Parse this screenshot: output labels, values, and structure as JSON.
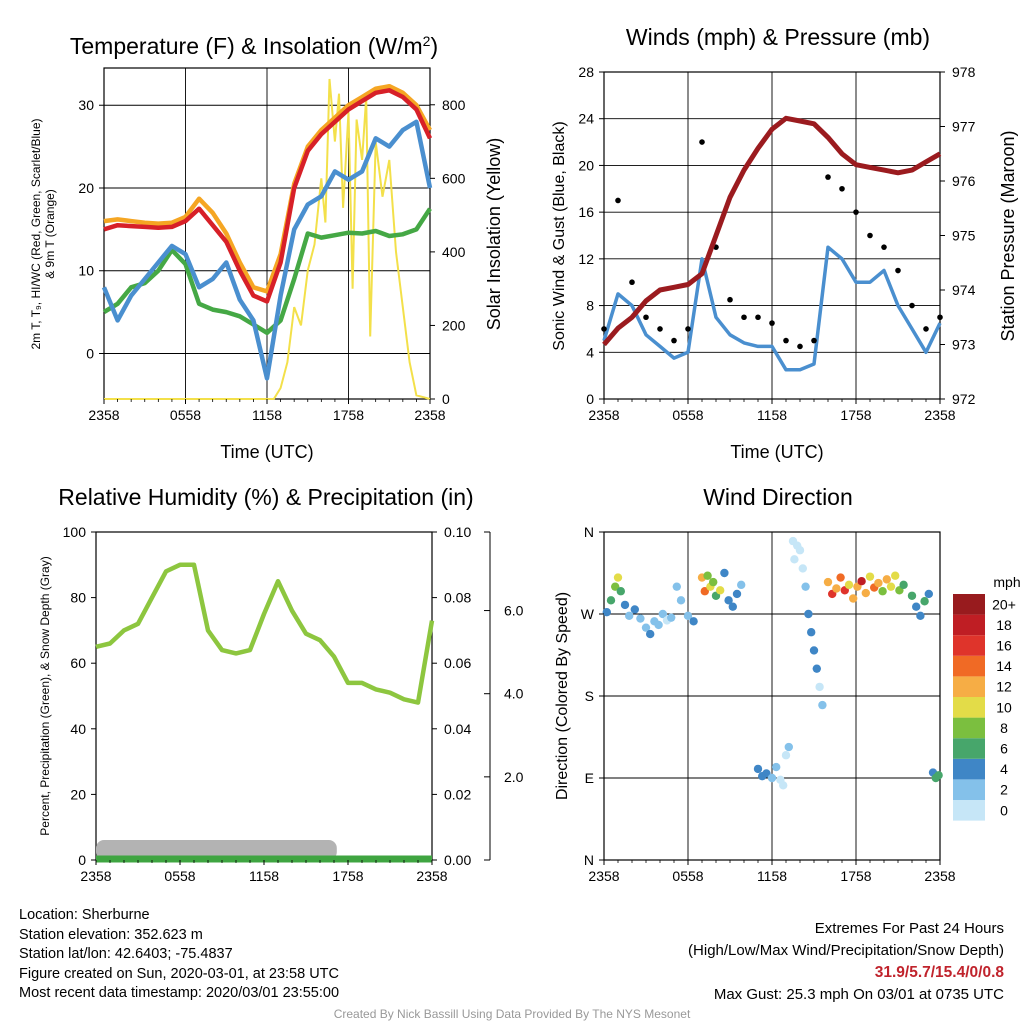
{
  "chart_data": [
    {
      "type": "line",
      "title": "Temperature (F) & Insolation (W/m",
      "title_sup": "2",
      "title_close": ")",
      "ylabel_lines": [
        "2m T, T₉, HI/WC (Red, Green, Scarlet/Blue)",
        "& 9m T (Orange)"
      ],
      "ylabel2": "Solar Insolation (Yellow)",
      "xlabel": "Time (UTC)",
      "x_ticks": [
        "2358",
        "0558",
        "1158",
        "1758",
        "2358"
      ],
      "ylim": [
        -5.5,
        34.5
      ],
      "y_ticks": [
        0,
        10,
        20,
        30
      ],
      "y2lim": [
        0,
        900
      ],
      "y2_ticks": [
        0,
        200,
        400,
        600,
        800
      ],
      "x_hours": [
        0,
        1,
        2,
        3,
        4,
        5,
        6,
        7,
        8,
        9,
        10,
        11,
        12,
        13,
        14,
        15,
        16,
        17,
        18,
        19,
        20,
        21,
        22,
        23,
        24
      ],
      "series": [
        {
          "color": "#f5a623",
          "values": [
            16,
            16.2,
            16,
            15.8,
            15.7,
            15.8,
            16.5,
            18.7,
            17,
            14.5,
            11,
            8,
            7.5,
            12,
            20.5,
            25,
            27,
            28.5,
            30,
            31,
            32,
            32.3,
            31.5,
            30,
            27
          ]
        },
        {
          "color": "#d72028",
          "values": [
            15,
            15.5,
            15.4,
            15.3,
            15.2,
            15.3,
            16,
            17.5,
            15.5,
            13.5,
            10,
            7,
            6.3,
            11,
            20,
            24.5,
            26.5,
            28,
            29.5,
            30.5,
            31.5,
            31.8,
            31,
            29.5,
            26
          ]
        },
        {
          "color": "#45a845",
          "values": [
            5,
            6,
            8,
            8.5,
            10,
            12.5,
            10.8,
            6,
            5.3,
            5,
            4.5,
            3.5,
            2.5,
            4,
            9,
            14.5,
            14,
            14.3,
            14.6,
            14.5,
            14.8,
            14.2,
            14.4,
            15,
            17.5
          ]
        },
        {
          "color": "#4a8fcf",
          "values": [
            8,
            4,
            7,
            9,
            11,
            13,
            12,
            8,
            9,
            11,
            6.5,
            4,
            -3,
            7,
            15,
            18,
            19,
            22,
            21,
            22,
            26,
            25,
            27,
            28,
            20
          ]
        }
      ],
      "insolation": {
        "color": "#f3e04a",
        "x_hours": [
          0,
          12.5,
          13,
          13.5,
          14,
          14.5,
          15,
          15.5,
          16,
          16.3,
          16.6,
          17,
          17.3,
          17.6,
          18,
          18.3,
          18.6,
          19,
          19.3,
          19.6,
          20,
          20.5,
          21,
          21.5,
          22,
          22.5,
          23,
          24
        ],
        "values": [
          0,
          0,
          30,
          100,
          250,
          200,
          350,
          420,
          600,
          480,
          870,
          700,
          830,
          520,
          780,
          300,
          760,
          650,
          820,
          170,
          700,
          550,
          650,
          400,
          250,
          100,
          10,
          0
        ]
      }
    },
    {
      "type": "line",
      "title": "Winds (mph) & Pressure (mb)",
      "ylabel": "Sonic Wind & Gust (Blue, Black)",
      "ylabel2": "Station Pressure (Maroon)",
      "xlabel": "Time (UTC)",
      "x_ticks": [
        "2358",
        "0558",
        "1158",
        "1758",
        "2358"
      ],
      "ylim": [
        0,
        28
      ],
      "y_ticks": [
        0,
        4,
        8,
        12,
        16,
        20,
        24,
        28
      ],
      "y2lim": [
        972,
        978
      ],
      "y2_ticks": [
        972,
        973,
        974,
        975,
        976,
        977,
        978
      ],
      "x_hours": [
        0,
        1,
        2,
        3,
        4,
        5,
        6,
        7,
        8,
        9,
        10,
        11,
        12,
        13,
        14,
        15,
        16,
        17,
        18,
        19,
        20,
        21,
        22,
        23,
        24
      ],
      "wind": {
        "color": "#4a8fcf",
        "values": [
          5,
          9,
          8,
          5.5,
          4.5,
          3.5,
          4,
          12,
          7,
          5.5,
          4.8,
          4.5,
          4.5,
          2.5,
          2.5,
          3,
          13,
          12,
          10,
          10,
          11,
          8,
          6,
          4,
          6.5
        ]
      },
      "gust": {
        "color": "#000000",
        "values": [
          6,
          17,
          10,
          7,
          6,
          5,
          6,
          22,
          13,
          8.5,
          7,
          7,
          6.5,
          5,
          4.5,
          5,
          19,
          18,
          16,
          14,
          13,
          11,
          8,
          6,
          7
        ]
      },
      "pressure": {
        "color": "#9b1b1f",
        "values": [
          973,
          973.3,
          973.5,
          973.8,
          974,
          974.05,
          974.1,
          974.3,
          975,
          975.7,
          976.2,
          976.6,
          976.95,
          977.15,
          977.1,
          977.05,
          976.8,
          976.5,
          976.3,
          976.25,
          976.2,
          976.15,
          976.2,
          976.35,
          976.5
        ]
      }
    },
    {
      "type": "line",
      "title": "Relative Humidity (%) & Precipitation (in)",
      "ylabel": "Percent, Precipitation (Green), & Snow Depth (Gray)",
      "x_ticks": [
        "2358",
        "0558",
        "1158",
        "1758",
        "2358"
      ],
      "ylim": [
        0,
        100
      ],
      "y_ticks": [
        0,
        20,
        40,
        60,
        80,
        100
      ],
      "y2_ticks": [
        "0.00",
        "0.02",
        "0.04",
        "0.06",
        "0.08",
        "0.10"
      ],
      "y3_ticks": [
        "2.0",
        "4.0",
        "6.0"
      ],
      "x_hours": [
        0,
        1,
        2,
        3,
        4,
        5,
        6,
        7,
        8,
        9,
        10,
        11,
        12,
        13,
        14,
        15,
        16,
        17,
        18,
        19,
        20,
        21,
        22,
        23,
        24
      ],
      "rh": {
        "color": "#8dc63f",
        "values": [
          65,
          66,
          70,
          72,
          80,
          88,
          90,
          90,
          70,
          64,
          63,
          64,
          75,
          85,
          76,
          69,
          67,
          62,
          54,
          54,
          52,
          51,
          49,
          48,
          73
        ]
      },
      "snow": {
        "color": "#b3b3b3",
        "values": [
          0.5,
          0.5,
          0.5,
          0.5,
          0.5,
          0.5,
          0.5,
          0.5,
          0.5,
          0.5,
          0.5,
          0.5,
          0.5,
          0.5,
          0.5,
          0.5,
          0.5,
          0.5,
          0,
          0,
          0,
          0,
          0,
          0,
          0
        ]
      },
      "precip": {
        "color": "#3fa541",
        "values": [
          0,
          0
        ]
      }
    },
    {
      "type": "scatter",
      "title": "Wind Direction",
      "ylabel": "Direction (Colored By Speed)",
      "x_ticks": [
        "2358",
        "0558",
        "1158",
        "1758",
        "2358"
      ],
      "y_ticks": [
        "N",
        "E",
        "S",
        "W",
        "N"
      ],
      "colorbar_title": "mph",
      "colorbar_labels": [
        "0",
        "2",
        "4",
        "6",
        "8",
        "10",
        "12",
        "14",
        "16",
        "18",
        "20+"
      ],
      "colorbar_colors": [
        "#c6e6f7",
        "#84c1ea",
        "#3f86c6",
        "#47a66b",
        "#7bbf3f",
        "#e3dc48",
        "#f6ad45",
        "#f06a25",
        "#df342b",
        "#bf1e24",
        "#981b1e"
      ],
      "points": [
        [
          0.2,
          272,
          4
        ],
        [
          0.5,
          285,
          7
        ],
        [
          0.8,
          300,
          8
        ],
        [
          1,
          310,
          10
        ],
        [
          1.2,
          295,
          6
        ],
        [
          1.5,
          280,
          5
        ],
        [
          1.8,
          268,
          3
        ],
        [
          2.2,
          275,
          4
        ],
        [
          2.6,
          265,
          3
        ],
        [
          3,
          255,
          2
        ],
        [
          3.3,
          248,
          4
        ],
        [
          3.6,
          262,
          3
        ],
        [
          3.9,
          258,
          2
        ],
        [
          4.2,
          270,
          3
        ],
        [
          4.5,
          263,
          1
        ],
        [
          4.8,
          266,
          2
        ],
        [
          5.2,
          300,
          2
        ],
        [
          5.5,
          285,
          2
        ],
        [
          6,
          268,
          3
        ],
        [
          6.4,
          262,
          4
        ],
        [
          7,
          310,
          12
        ],
        [
          7.2,
          295,
          14
        ],
        [
          7.4,
          312,
          9
        ],
        [
          7.6,
          300,
          10
        ],
        [
          7.8,
          305,
          8
        ],
        [
          8,
          290,
          6
        ],
        [
          8.3,
          296,
          11
        ],
        [
          8.6,
          315,
          4
        ],
        [
          8.9,
          285,
          4
        ],
        [
          9.2,
          278,
          5
        ],
        [
          9.5,
          292,
          5
        ],
        [
          9.8,
          302,
          2
        ],
        [
          11,
          100,
          4
        ],
        [
          11.3,
          92,
          5
        ],
        [
          11.6,
          95,
          4
        ],
        [
          12,
          90,
          3
        ],
        [
          12.3,
          102,
          2
        ],
        [
          12.6,
          88,
          1
        ],
        [
          12.8,
          82,
          1
        ],
        [
          13,
          115,
          1
        ],
        [
          13.2,
          124,
          2
        ],
        [
          13.5,
          350,
          0
        ],
        [
          13.6,
          330,
          1
        ],
        [
          13.8,
          345,
          0
        ],
        [
          14,
          340,
          1
        ],
        [
          14.2,
          320,
          1
        ],
        [
          14.4,
          300,
          2
        ],
        [
          14.6,
          270,
          4
        ],
        [
          14.8,
          250,
          4
        ],
        [
          15,
          230,
          4
        ],
        [
          15.2,
          210,
          4
        ],
        [
          15.4,
          190,
          1
        ],
        [
          15.6,
          170,
          2
        ],
        [
          16,
          305,
          12
        ],
        [
          16.3,
          292,
          16
        ],
        [
          16.6,
          298,
          13
        ],
        [
          16.9,
          310,
          14
        ],
        [
          17.2,
          296,
          17
        ],
        [
          17.5,
          302,
          11
        ],
        [
          17.8,
          287,
          12
        ],
        [
          18.1,
          300,
          13
        ],
        [
          18.4,
          306,
          18
        ],
        [
          18.7,
          293,
          12
        ],
        [
          19,
          311,
          10
        ],
        [
          19.3,
          299,
          15
        ],
        [
          19.6,
          304,
          13
        ],
        [
          19.9,
          295,
          9
        ],
        [
          20.2,
          308,
          12
        ],
        [
          20.5,
          300,
          11
        ],
        [
          20.8,
          312,
          10
        ],
        [
          21.1,
          296,
          8
        ],
        [
          21.4,
          302,
          7
        ],
        [
          22,
          290,
          6
        ],
        [
          22.3,
          278,
          5
        ],
        [
          22.6,
          268,
          4
        ],
        [
          22.9,
          284,
          6
        ],
        [
          23.2,
          292,
          5
        ],
        [
          23.5,
          96,
          4
        ],
        [
          23.7,
          90,
          6
        ],
        [
          23.9,
          93,
          7
        ]
      ]
    }
  ],
  "footer": {
    "location": "Location: Sherburne",
    "elevation": "Station elevation: 352.623 m",
    "latlon": "Station lat/lon: 42.6403; -75.4837",
    "created": "Figure created on Sun, 2020-03-01, at 23:58 UTC",
    "recent": "Most recent data timestamp: 2020/03/01 23:55:00",
    "extremes_title": "Extremes For Past 24 Hours",
    "extremes_desc": "(High/Low/Max Wind/Precipitation/Snow Depth)",
    "extremes_values": "31.9/5.7/15.4/0/0.8",
    "max_gust": "Max Gust: 25.3 mph On 03/01 at 0735 UTC",
    "credit": "Created By Nick Bassill Using Data Provided By The NYS Mesonet"
  }
}
